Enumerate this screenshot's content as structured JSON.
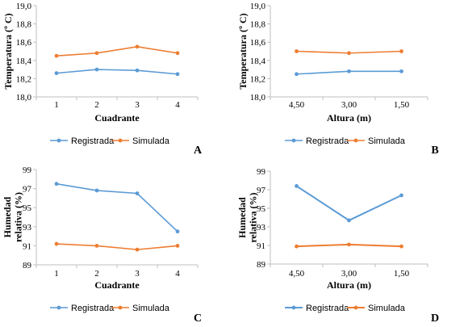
{
  "chart_data": [
    {
      "type": "line",
      "panel": "A",
      "xlabel": "Cuadrante",
      "ylabel": "Temperatura (º C)",
      "categories": [
        "1",
        "2",
        "3",
        "4"
      ],
      "ylim": [
        18.0,
        19.0
      ],
      "yticks": [
        "18,0",
        "18,2",
        "18,4",
        "18,6",
        "18,8",
        "19,0"
      ],
      "series": [
        {
          "name": "Registrada",
          "color": "#5b9bd5",
          "values": [
            18.26,
            18.3,
            18.29,
            18.25
          ]
        },
        {
          "name": "Simulada",
          "color": "#ed7d31",
          "values": [
            18.45,
            18.48,
            18.55,
            18.48
          ]
        }
      ],
      "legend": "bottom"
    },
    {
      "type": "line",
      "panel": "B",
      "xlabel": "Altura (m)",
      "ylabel": "Temperatura (º C)",
      "categories": [
        "4,50",
        "3,00",
        "1,50"
      ],
      "ylim": [
        18.0,
        19.0
      ],
      "yticks": [
        "18,0",
        "18,2",
        "18,4",
        "18,6",
        "18,8",
        "19,0"
      ],
      "series": [
        {
          "name": "Registrada",
          "color": "#5b9bd5",
          "values": [
            18.25,
            18.28,
            18.28
          ]
        },
        {
          "name": "Simulada",
          "color": "#ed7d31",
          "values": [
            18.5,
            18.48,
            18.5
          ]
        }
      ],
      "legend": "bottom"
    },
    {
      "type": "line",
      "panel": "C",
      "xlabel": "Cuadrante",
      "ylabel": "Humedad relativa (%)",
      "categories": [
        "1",
        "2",
        "3",
        "4"
      ],
      "ylim": [
        89,
        99
      ],
      "yticks": [
        "89",
        "91",
        "93",
        "95",
        "97",
        "99"
      ],
      "series": [
        {
          "name": "Registrada",
          "color": "#5b9bd5",
          "values": [
            97.5,
            96.8,
            96.5,
            92.5
          ]
        },
        {
          "name": "Simulada",
          "color": "#ed7d31",
          "values": [
            91.2,
            91.0,
            90.6,
            91.0
          ]
        }
      ],
      "legend": "bottom"
    },
    {
      "type": "line",
      "panel": "D",
      "xlabel": "Altura (m)",
      "ylabel": "Humedad relativa (%)",
      "categories": [
        "4,50",
        "3,00",
        "1,50"
      ],
      "ylim": [
        89,
        99
      ],
      "yticks": [
        "89",
        "91",
        "93",
        "95",
        "97",
        "99"
      ],
      "series": [
        {
          "name": "Registrada",
          "color": "#5b9bd5",
          "values": [
            97.4,
            93.7,
            96.4
          ]
        },
        {
          "name": "Simulada",
          "color": "#ed7d31",
          "values": [
            90.9,
            91.1,
            90.9
          ]
        }
      ],
      "legend": "bottom"
    }
  ]
}
